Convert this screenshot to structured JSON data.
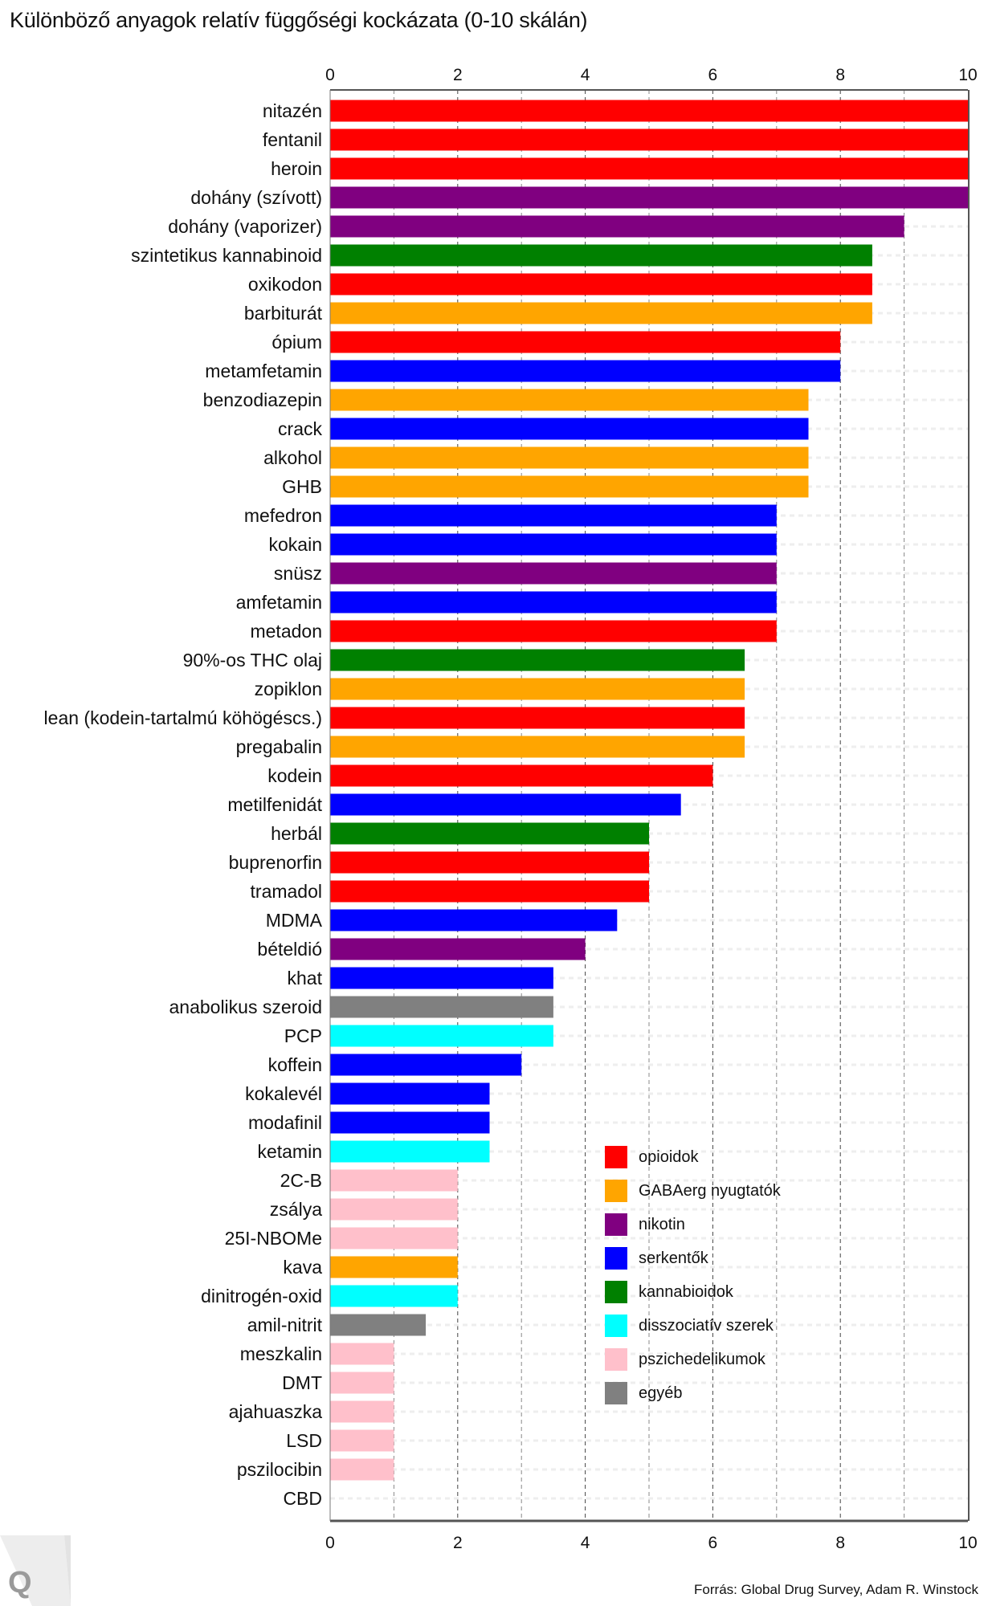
{
  "title": "Különböző anyagok relatív függőségi kockázata (0-10 skálán)",
  "source": "Forrás: Global Drug Survey, Adam R. Winstock",
  "logo_text": "Q",
  "chart_data": {
    "type": "bar",
    "orientation": "horizontal",
    "title": "Különböző anyagok relatív függőségi kockázata (0-10 skálán)",
    "xlim": [
      0,
      10
    ],
    "ticks": [
      "0",
      "2",
      "4",
      "6",
      "8",
      "10"
    ],
    "grid": true,
    "legend_position": "bottom-right",
    "groups": [
      {
        "key": "opioid",
        "name": "opioidok",
        "color": "#ff0000"
      },
      {
        "key": "gaba",
        "name": "GABAerg nyugtatók",
        "color": "#ffa500"
      },
      {
        "key": "nikotin",
        "name": "nikotin",
        "color": "#800080"
      },
      {
        "key": "serkento",
        "name": "serkentők",
        "color": "#0000ff"
      },
      {
        "key": "kannab",
        "name": "kannabioidok",
        "color": "#008000"
      },
      {
        "key": "disszoc",
        "name": "disszociatív szerek",
        "color": "#00ffff"
      },
      {
        "key": "psziched",
        "name": "pszichedelikumok",
        "color": "#ffc0cb"
      },
      {
        "key": "egyeb",
        "name": "egyéb",
        "color": "#808080"
      }
    ],
    "bars": [
      {
        "label": "nitazén",
        "value": 10,
        "group": "opioid"
      },
      {
        "label": "fentanil",
        "value": 10,
        "group": "opioid"
      },
      {
        "label": "heroin",
        "value": 10,
        "group": "opioid"
      },
      {
        "label": "dohány (szívott)",
        "value": 10,
        "group": "nikotin"
      },
      {
        "label": "dohány (vaporizer)",
        "value": 9,
        "group": "nikotin"
      },
      {
        "label": "szintetikus kannabinoid",
        "value": 8.5,
        "group": "kannab"
      },
      {
        "label": "oxikodon",
        "value": 8.5,
        "group": "opioid"
      },
      {
        "label": "barbiturát",
        "value": 8.5,
        "group": "gaba"
      },
      {
        "label": "ópium",
        "value": 8,
        "group": "opioid"
      },
      {
        "label": "metamfetamin",
        "value": 8,
        "group": "serkento"
      },
      {
        "label": "benzodiazepin",
        "value": 7.5,
        "group": "gaba"
      },
      {
        "label": "crack",
        "value": 7.5,
        "group": "serkento"
      },
      {
        "label": "alkohol",
        "value": 7.5,
        "group": "gaba"
      },
      {
        "label": "GHB",
        "value": 7.5,
        "group": "gaba"
      },
      {
        "label": "mefedron",
        "value": 7,
        "group": "serkento"
      },
      {
        "label": "kokain",
        "value": 7,
        "group": "serkento"
      },
      {
        "label": "snüsz",
        "value": 7,
        "group": "nikotin"
      },
      {
        "label": "amfetamin",
        "value": 7,
        "group": "serkento"
      },
      {
        "label": "metadon",
        "value": 7,
        "group": "opioid"
      },
      {
        "label": "90%-os THC olaj",
        "value": 6.5,
        "group": "kannab"
      },
      {
        "label": "zopiklon",
        "value": 6.5,
        "group": "gaba"
      },
      {
        "label": "lean (kodein-tartalmú köhögéscs.)",
        "value": 6.5,
        "group": "opioid"
      },
      {
        "label": "pregabalin",
        "value": 6.5,
        "group": "gaba"
      },
      {
        "label": "kodein",
        "value": 6,
        "group": "opioid"
      },
      {
        "label": "metilfenidát",
        "value": 5.5,
        "group": "serkento"
      },
      {
        "label": "herbál",
        "value": 5,
        "group": "kannab"
      },
      {
        "label": "buprenorfin",
        "value": 5,
        "group": "opioid"
      },
      {
        "label": "tramadol",
        "value": 5,
        "group": "opioid"
      },
      {
        "label": "MDMA",
        "value": 4.5,
        "group": "serkento"
      },
      {
        "label": "bételdió",
        "value": 4,
        "group": "nikotin"
      },
      {
        "label": "khat",
        "value": 3.5,
        "group": "serkento"
      },
      {
        "label": "anabolikus szeroid",
        "value": 3.5,
        "group": "egyeb"
      },
      {
        "label": "PCP",
        "value": 3.5,
        "group": "disszoc"
      },
      {
        "label": "koffein",
        "value": 3,
        "group": "serkento"
      },
      {
        "label": "kokalevél",
        "value": 2.5,
        "group": "serkento"
      },
      {
        "label": "modafinil",
        "value": 2.5,
        "group": "serkento"
      },
      {
        "label": "ketamin",
        "value": 2.5,
        "group": "disszoc"
      },
      {
        "label": "2C-B",
        "value": 2,
        "group": "psziched"
      },
      {
        "label": "zsálya",
        "value": 2,
        "group": "psziched"
      },
      {
        "label": "25I-NBOMe",
        "value": 2,
        "group": "psziched"
      },
      {
        "label": "kava",
        "value": 2,
        "group": "gaba"
      },
      {
        "label": "dinitrogén-oxid",
        "value": 2,
        "group": "disszoc"
      },
      {
        "label": "amil-nitrit",
        "value": 1.5,
        "group": "egyeb"
      },
      {
        "label": "meszkalin",
        "value": 1,
        "group": "psziched"
      },
      {
        "label": "DMT",
        "value": 1,
        "group": "psziched"
      },
      {
        "label": "ajahuaszka",
        "value": 1,
        "group": "psziched"
      },
      {
        "label": "LSD",
        "value": 1,
        "group": "psziched"
      },
      {
        "label": "pszilocibin",
        "value": 1,
        "group": "psziched"
      },
      {
        "label": "CBD",
        "value": 0,
        "group": "egyeb"
      }
    ]
  }
}
